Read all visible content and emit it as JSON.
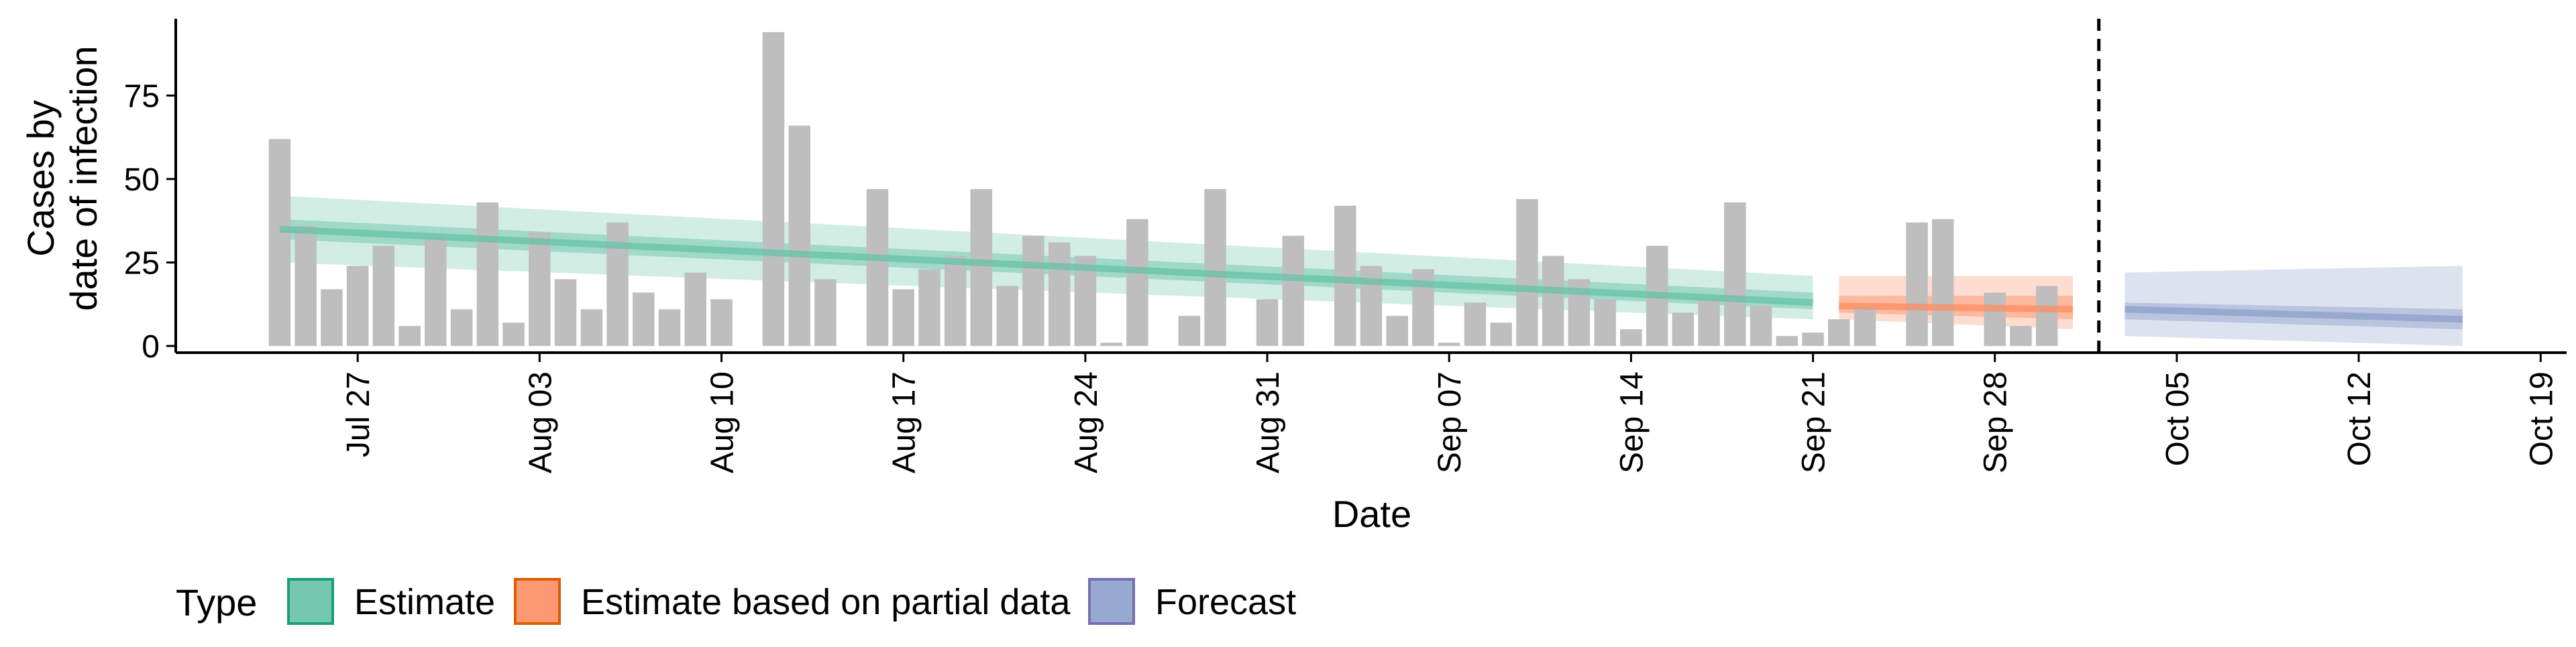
{
  "chart_data": {
    "type": "bar",
    "xlabel": "Date",
    "ylabel_lines": [
      "Cases by",
      "date of infection"
    ],
    "ylim": [
      -2,
      98
    ],
    "xlim": [
      "2020-07-20",
      "2020-10-20"
    ],
    "y_ticks": [
      0,
      25,
      50,
      75
    ],
    "x_ticks": [
      {
        "date": "2020-07-27",
        "label": "Jul 27"
      },
      {
        "date": "2020-08-03",
        "label": "Aug 03"
      },
      {
        "date": "2020-08-10",
        "label": "Aug 10"
      },
      {
        "date": "2020-08-17",
        "label": "Aug 17"
      },
      {
        "date": "2020-08-24",
        "label": "Aug 24"
      },
      {
        "date": "2020-08-31",
        "label": "Aug 31"
      },
      {
        "date": "2020-09-07",
        "label": "Sep 07"
      },
      {
        "date": "2020-09-14",
        "label": "Sep 14"
      },
      {
        "date": "2020-09-21",
        "label": "Sep 21"
      },
      {
        "date": "2020-09-28",
        "label": "Sep 28"
      },
      {
        "date": "2020-10-05",
        "label": "Oct 05"
      },
      {
        "date": "2020-10-12",
        "label": "Oct 12"
      },
      {
        "date": "2020-10-19",
        "label": "Oct 19"
      }
    ],
    "bar_color": "#bebebe",
    "bar_dates_start": "2020-07-24",
    "bar_values": [
      62,
      36,
      17,
      24,
      30,
      6,
      33,
      11,
      43,
      7,
      34,
      20,
      11,
      37,
      16,
      11,
      22,
      14,
      0,
      94,
      66,
      20,
      0,
      47,
      17,
      23,
      27,
      47,
      18,
      33,
      31,
      27,
      1,
      38,
      0,
      9,
      47,
      0,
      14,
      33,
      0,
      42,
      24,
      9,
      23,
      1,
      13,
      7,
      44,
      27,
      20,
      14,
      5,
      30,
      10,
      14,
      43,
      12,
      3,
      4,
      8,
      12,
      0,
      37,
      38,
      0,
      16,
      6,
      18
    ],
    "vline": {
      "date": "2020-10-02",
      "style": "dashed"
    },
    "series": [
      {
        "name": "Estimate",
        "color": "#1b9e77",
        "fill": "#66c2a5",
        "x_start": "2020-07-24",
        "x_end": "2020-09-21",
        "median": [
          35,
          13
        ],
        "inner_band": [
          [
            32,
            38
          ],
          [
            11,
            16
          ]
        ],
        "outer_band": [
          [
            25,
            45
          ],
          [
            8,
            21
          ]
        ]
      },
      {
        "name": "Estimate based on partial data",
        "color": "#d95f02",
        "fill": "#fc8d62",
        "x_start": "2020-09-22",
        "x_end": "2020-10-01",
        "median": [
          12,
          11
        ],
        "inner_band": [
          [
            10,
            15
          ],
          [
            8,
            15
          ]
        ],
        "outer_band": [
          [
            8,
            21
          ],
          [
            5,
            21
          ]
        ]
      },
      {
        "name": "Forecast",
        "color": "#7570b3",
        "fill": "#8da0cb",
        "x_start": "2020-10-03",
        "x_end": "2020-10-16",
        "median": [
          11,
          8
        ],
        "inner_band": [
          [
            8,
            13
          ],
          [
            5,
            11
          ]
        ],
        "outer_band": [
          [
            3,
            22
          ],
          [
            0,
            24
          ]
        ]
      }
    ],
    "legend": {
      "title": "Type",
      "position": "bottom-left",
      "items": [
        "Estimate",
        "Estimate based on partial data",
        "Forecast"
      ]
    },
    "grid": false
  }
}
